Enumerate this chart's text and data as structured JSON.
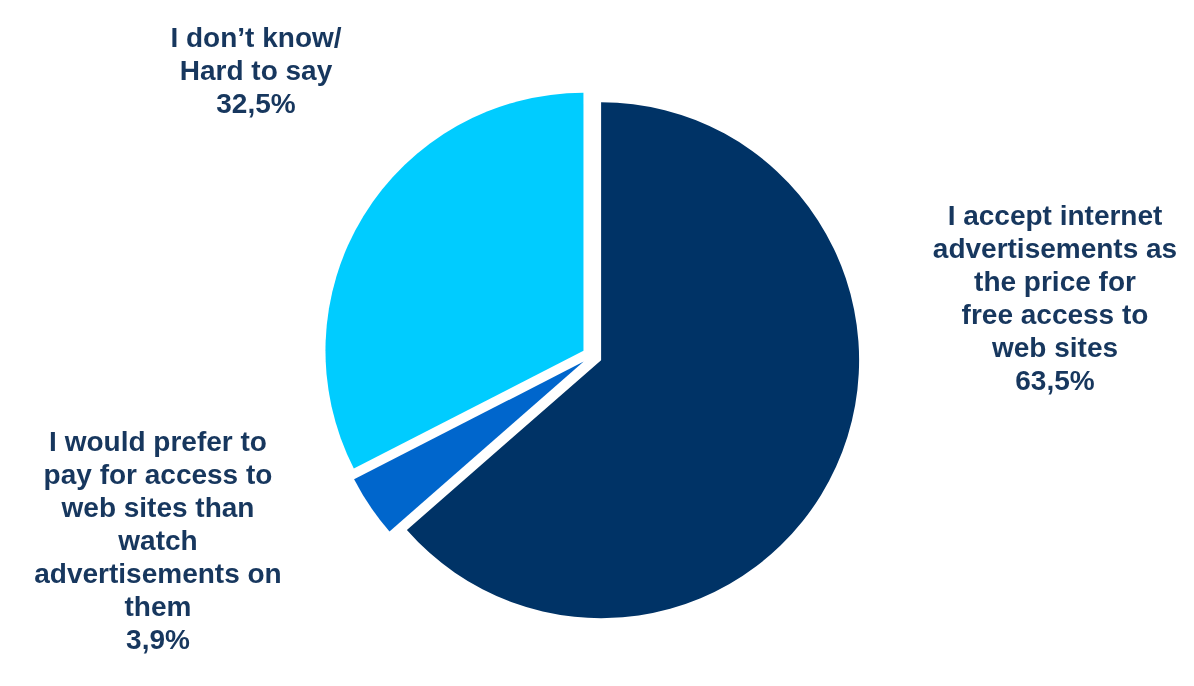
{
  "chart_data": {
    "type": "pie",
    "categories": [
      "I accept internet advertisements as the price for free access to web sites",
      "I would prefer to pay for access to web sites than watch advertisements on them",
      "I don’t know/ Hard to say"
    ],
    "values": [
      63.5,
      3.9,
      32.5
    ],
    "colors": [
      "#003366",
      "#0066cc",
      "#00ccff"
    ],
    "value_labels": [
      "63,5%",
      "3,9%",
      "32,5%"
    ]
  }
}
